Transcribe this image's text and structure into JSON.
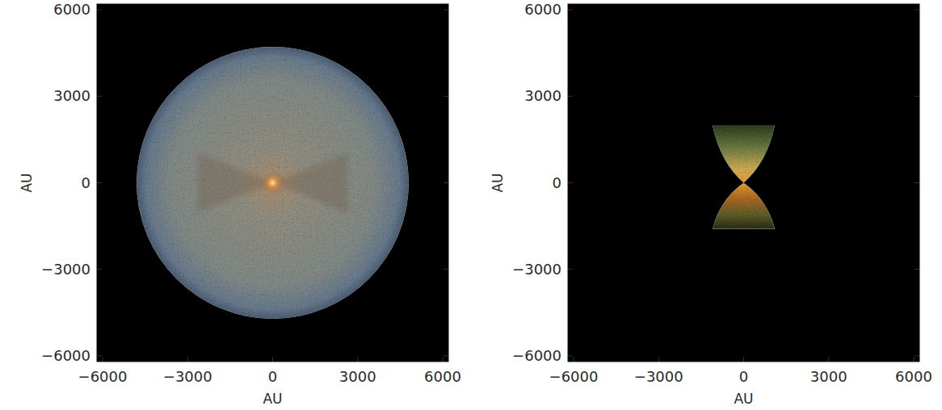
{
  "chart_data": [
    {
      "type": "image",
      "xlabel": "AU",
      "ylabel": "AU",
      "xlim": [
        -6200,
        6200
      ],
      "ylim": [
        -6200,
        6200
      ],
      "xticks": [
        {
          "value": -6000,
          "label": "−6000"
        },
        {
          "value": -3000,
          "label": "−3000"
        },
        0,
        3000,
        6000
      ],
      "yticks": [
        {
          "value": -6000,
          "label": "−6000"
        },
        {
          "value": -3000,
          "label": "−3000"
        },
        0,
        3000,
        6000
      ],
      "radius": 4800
    },
    {
      "type": "bicone",
      "xlabel": "AU",
      "ylabel": "AU",
      "xlim": [
        -6200,
        6200
      ],
      "ylim": [
        -6200,
        6200
      ],
      "xticks": [
        {
          "value": -6000,
          "label": "−6000"
        },
        {
          "value": -3000,
          "label": "−3000"
        },
        0,
        3000,
        6000
      ],
      "yticks": [
        {
          "value": -6000,
          "label": "−6000"
        },
        {
          "value": -3000,
          "label": "−3000"
        },
        0,
        3000,
        6000
      ],
      "cone_ends": [
        2000,
        -1600
      ],
      "cone_half_width": 1100
    }
  ]
}
